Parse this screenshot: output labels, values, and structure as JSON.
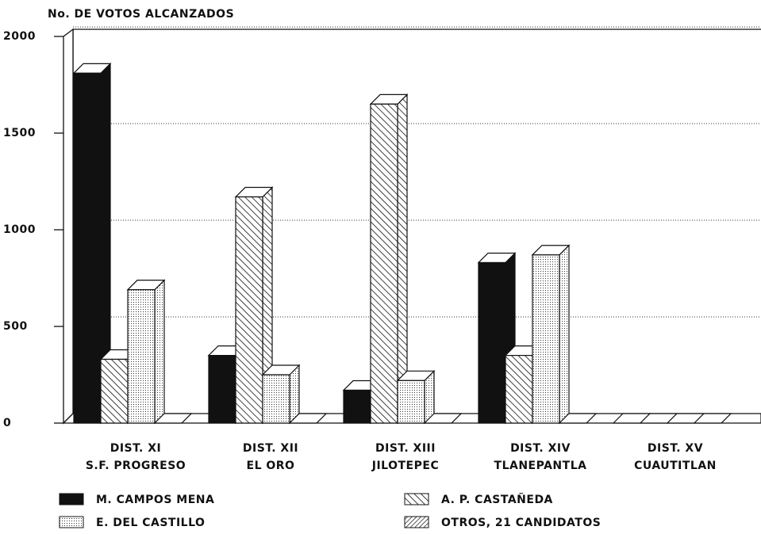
{
  "chart_data": {
    "type": "bar3d",
    "title": "No. DE VOTOS ALCANZADOS",
    "categories": [
      [
        "DIST. XI",
        "S.F. PROGRESO"
      ],
      [
        "DIST. XII",
        "EL ORO"
      ],
      [
        "DIST. XIII",
        "JILOTEPEC"
      ],
      [
        "DIST. XIV",
        "TLANEPANTLA"
      ],
      [
        "DIST. XV",
        "CUAUTITLAN"
      ]
    ],
    "series": [
      {
        "name": "M. CAMPOS MENA",
        "color": "#111111",
        "pattern": "solid",
        "values": [
          1810,
          350,
          170,
          830,
          0
        ]
      },
      {
        "name": "A. P. CASTAÑEDA",
        "color": "#111111",
        "pattern": "diagonal",
        "values": [
          330,
          1170,
          1650,
          350,
          0
        ]
      },
      {
        "name": "E. DEL CASTILLO",
        "color": "#111111",
        "pattern": "dots",
        "values": [
          690,
          250,
          220,
          870,
          0
        ]
      },
      {
        "name": "OTROS, 21 CANDIDATOS",
        "color": "#111111",
        "pattern": "crosshatch",
        "values": [
          0,
          0,
          0,
          0,
          0
        ]
      }
    ],
    "ylim": [
      0,
      2000
    ],
    "yticks": [
      0,
      500,
      1000,
      1500,
      2000
    ],
    "grid": true
  }
}
